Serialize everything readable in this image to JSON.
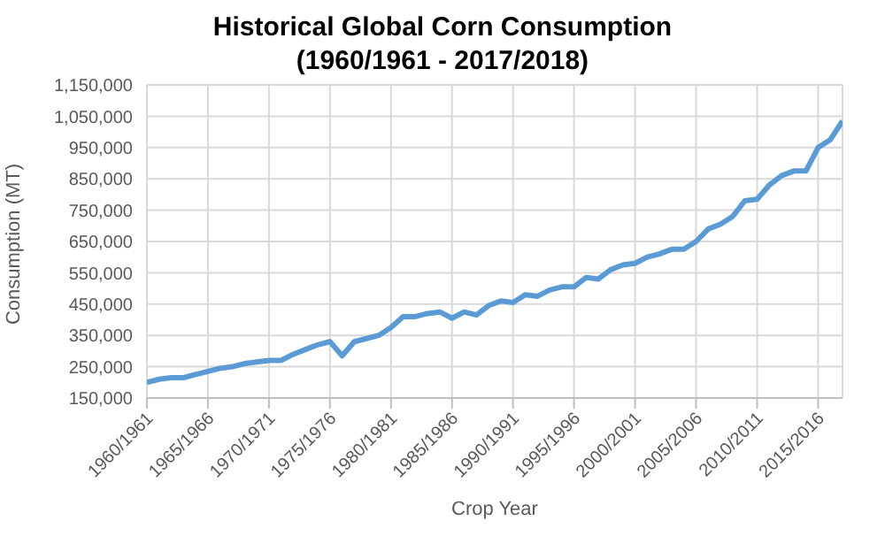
{
  "chart_data": {
    "type": "line",
    "title": "Historical Global Corn Consumption\n(1960/1961 - 2017/2018)",
    "xlabel": "Crop Year",
    "ylabel": "Consumption (MT)",
    "categories": [
      "1960/1961",
      null,
      null,
      null,
      null,
      "1965/1966",
      null,
      null,
      null,
      null,
      "1970/1971",
      null,
      null,
      null,
      null,
      "1975/1976",
      null,
      null,
      null,
      null,
      "1980/1981",
      null,
      null,
      null,
      null,
      "1985/1986",
      null,
      null,
      null,
      null,
      "1990/1991",
      null,
      null,
      null,
      null,
      "1995/1996",
      null,
      null,
      null,
      null,
      "2000/2001",
      null,
      null,
      null,
      null,
      "2005/2006",
      null,
      null,
      null,
      null,
      "2010/2011",
      null,
      null,
      null,
      null,
      "2015/2016",
      null,
      null
    ],
    "series": [
      {
        "color": "#5b9bd5",
        "values": [
          200000,
          210000,
          215000,
          215000,
          225000,
          235000,
          245000,
          250000,
          260000,
          265000,
          270000,
          270000,
          290000,
          305000,
          320000,
          330000,
          285000,
          330000,
          340000,
          350000,
          375000,
          410000,
          410000,
          420000,
          425000,
          405000,
          425000,
          415000,
          445000,
          460000,
          455000,
          480000,
          475000,
          495000,
          505000,
          505000,
          535000,
          530000,
          560000,
          575000,
          580000,
          600000,
          610000,
          625000,
          625000,
          650000,
          690000,
          705000,
          730000,
          780000,
          785000,
          830000,
          860000,
          875000,
          875000,
          950000,
          975000,
          1035000
        ]
      }
    ],
    "ylim": [
      150000,
      1150000
    ],
    "yticks": [
      {
        "value": 150000,
        "label": "150,000"
      },
      {
        "value": 250000,
        "label": "250,000"
      },
      {
        "value": 350000,
        "label": "350,000"
      },
      {
        "value": 450000,
        "label": "450,000"
      },
      {
        "value": 550000,
        "label": "550,000"
      },
      {
        "value": 650000,
        "label": "650,000"
      },
      {
        "value": 750000,
        "label": "750,000"
      },
      {
        "value": 850000,
        "label": "850,000"
      },
      {
        "value": 950000,
        "label": "950,000"
      },
      {
        "value": 1050000,
        "label": "1,050,000"
      },
      {
        "value": 1150000,
        "label": "1,150,000"
      }
    ],
    "grid": true,
    "legend": false,
    "marker": "none",
    "line_style": "solid"
  }
}
